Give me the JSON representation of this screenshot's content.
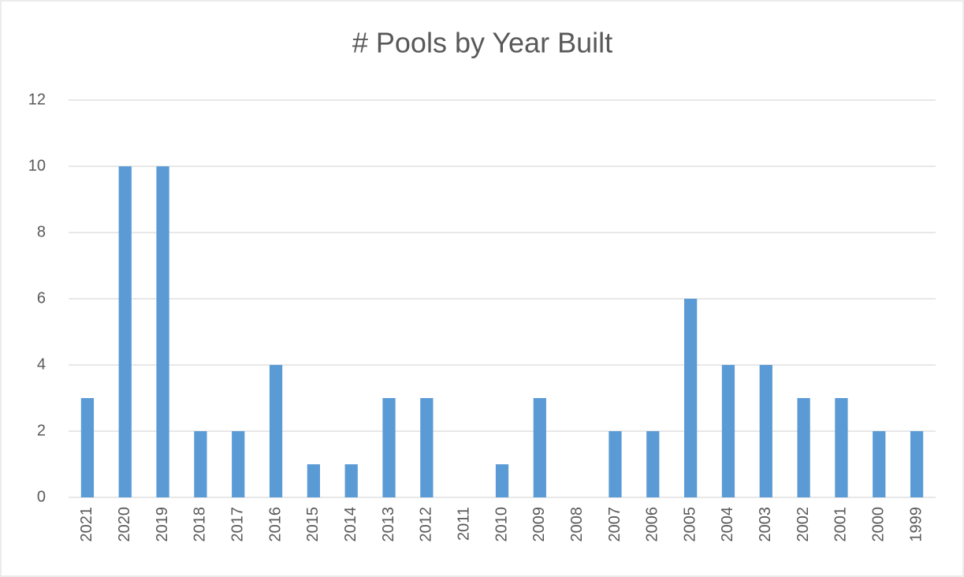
{
  "chart_data": {
    "type": "bar",
    "title": "# Pools by Year Built",
    "categories": [
      "2021",
      "2020",
      "2019",
      "2018",
      "2017",
      "2016",
      "2015",
      "2014",
      "2013",
      "2012",
      "2011",
      "2010",
      "2009",
      "2008",
      "2007",
      "2006",
      "2005",
      "2004",
      "2003",
      "2002",
      "2001",
      "2000",
      "1999"
    ],
    "values": [
      3,
      10,
      10,
      2,
      2,
      4,
      1,
      1,
      3,
      3,
      0,
      1,
      3,
      0,
      2,
      2,
      6,
      4,
      4,
      3,
      3,
      2,
      2
    ],
    "color": "#5b9bd5",
    "ylim": [
      0,
      12
    ],
    "yticks": [
      0,
      2,
      4,
      6,
      8,
      10,
      12
    ],
    "grid": true
  }
}
